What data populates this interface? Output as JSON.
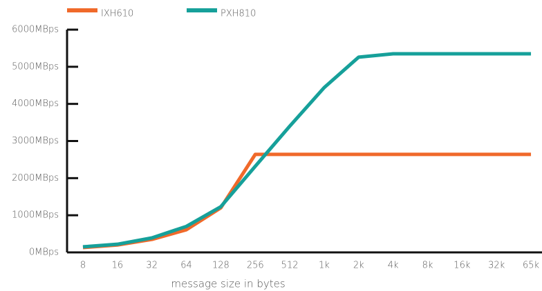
{
  "chart_data": {
    "type": "line",
    "x_label": "message size in bytes",
    "categories": [
      "8",
      "16",
      "32",
      "64",
      "128",
      "256",
      "512",
      "1k",
      "2k",
      "4k",
      "8k",
      "16k",
      "32k",
      "65k"
    ],
    "series": [
      {
        "name": "IXH610",
        "color": "#f0692a",
        "values": [
          130,
          200,
          350,
          610,
          1200,
          2640,
          2640,
          2640,
          2640,
          2640,
          2640,
          2640,
          2640,
          2640
        ]
      },
      {
        "name": "PXH810",
        "color": "#16a09a",
        "values": [
          150,
          220,
          390,
          700,
          1230,
          2320,
          3400,
          4440,
          5260,
          5350,
          5350,
          5350,
          5350,
          5350
        ]
      }
    ],
    "ylim": [
      0,
      6000
    ],
    "yticks": [
      {
        "value": 0,
        "label": "0MBps"
      },
      {
        "value": 1000,
        "label": "1000MBps"
      },
      {
        "value": 2000,
        "label": "2000MBps"
      },
      {
        "value": 3000,
        "label": "3000MBps"
      },
      {
        "value": 4000,
        "label": "4000MBps"
      },
      {
        "value": 5000,
        "label": "5000MBps"
      },
      {
        "value": 6000,
        "label": "6000MBps"
      }
    ]
  }
}
